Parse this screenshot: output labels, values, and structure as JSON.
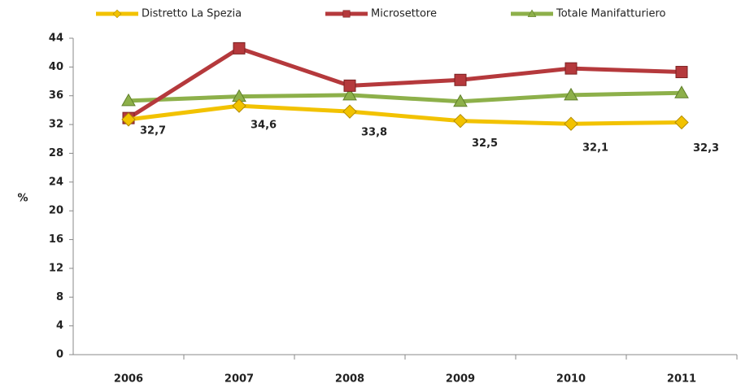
{
  "chart_data": {
    "type": "line",
    "y_label": "%",
    "categories": [
      "2006",
      "2007",
      "2008",
      "2009",
      "2010",
      "2011"
    ],
    "series": [
      {
        "name": "Distretto La Spezia",
        "color": "#f2c200",
        "marker": "diamond",
        "values": [
          32.7,
          34.6,
          33.8,
          32.5,
          32.1,
          32.3
        ],
        "value_labels": [
          "32,7",
          "34,6",
          "33,8",
          "32,5",
          "32,1",
          "32,3"
        ]
      },
      {
        "name": "Microsettore",
        "color": "#b5393c",
        "marker": "square",
        "values": [
          32.9,
          42.6,
          37.4,
          38.2,
          39.8,
          39.3
        ]
      },
      {
        "name": "Totale Manifatturiero",
        "color": "#8db04a",
        "marker": "triangle",
        "values": [
          35.3,
          35.9,
          36.1,
          35.2,
          36.1,
          36.4
        ]
      }
    ],
    "ylim": [
      0,
      44
    ],
    "yticks": [
      0,
      4,
      8,
      12,
      16,
      20,
      24,
      28,
      32,
      36,
      40,
      44
    ],
    "grid": false,
    "legend": "top"
  }
}
